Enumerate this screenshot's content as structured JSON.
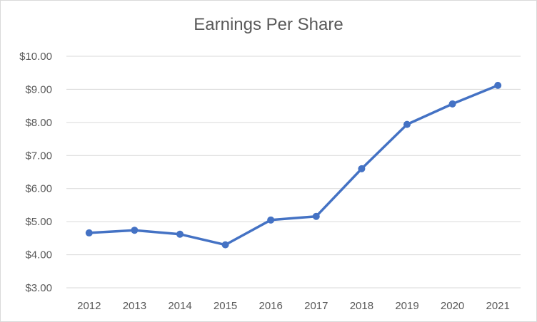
{
  "chart_data": {
    "type": "line",
    "title": "Earnings Per Share",
    "xlabel": "",
    "ylabel": "",
    "categories": [
      "2012",
      "2013",
      "2014",
      "2015",
      "2016",
      "2017",
      "2018",
      "2019",
      "2020",
      "2021"
    ],
    "series": [
      {
        "values": [
          4.66,
          4.74,
          4.62,
          4.3,
          5.05,
          5.16,
          6.6,
          7.94,
          8.56,
          9.12
        ]
      }
    ],
    "ylim": [
      3,
      10
    ],
    "yticks": [
      3,
      4,
      5,
      6,
      7,
      8,
      9,
      10
    ],
    "ytick_labels": [
      "$3.00",
      "$4.00",
      "$5.00",
      "$6.00",
      "$7.00",
      "$8.00",
      "$9.00",
      "$10.00"
    ],
    "grid": true,
    "legend": "none",
    "colors": {
      "series": "#4472c4",
      "grid": "#d9d9d9",
      "text": "#595959"
    }
  }
}
